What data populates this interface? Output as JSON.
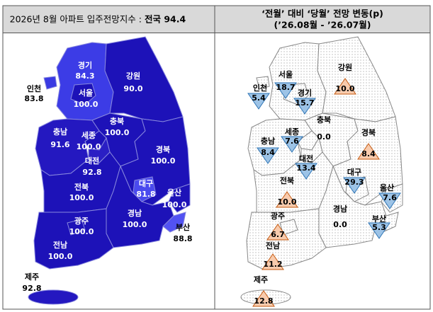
{
  "left": {
    "title": "2026년 8월 아파트 입주전망지수 :",
    "national": "전국 94.4",
    "regions": [
      {
        "name": "경기",
        "value": "84.3"
      },
      {
        "name": "서울",
        "value": "100.0"
      },
      {
        "name": "인천",
        "value": "83.8"
      },
      {
        "name": "강원",
        "value": "90.0"
      },
      {
        "name": "충북",
        "value": "100.0"
      },
      {
        "name": "충남",
        "value": "91.6"
      },
      {
        "name": "세종",
        "value": "100.0"
      },
      {
        "name": "대전",
        "value": "92.8"
      },
      {
        "name": "경북",
        "value": "100.0"
      },
      {
        "name": "대구",
        "value": "81.8"
      },
      {
        "name": "전북",
        "value": "100.0"
      },
      {
        "name": "울산",
        "value": "100.0"
      },
      {
        "name": "경남",
        "value": "100.0"
      },
      {
        "name": "부산",
        "value": "88.8"
      },
      {
        "name": "광주",
        "value": "100.0"
      },
      {
        "name": "전남",
        "value": "100.0"
      },
      {
        "name": "제주",
        "value": "92.8"
      }
    ]
  },
  "right": {
    "title": "‘전월’ 대비 ‘당월’ 전망 변동(p)",
    "subtitle": "(’26.08월 - ’26.07월)",
    "regions": [
      {
        "name": "경기",
        "value": "15.7",
        "trend": "down"
      },
      {
        "name": "서울",
        "value": "18.7",
        "trend": "down"
      },
      {
        "name": "인천",
        "value": "5.4",
        "trend": "down"
      },
      {
        "name": "강원",
        "value": "10.0",
        "trend": "up"
      },
      {
        "name": "충북",
        "value": "0.0",
        "trend": "none"
      },
      {
        "name": "충남",
        "value": "8.4",
        "trend": "down"
      },
      {
        "name": "세종",
        "value": "7.6",
        "trend": "down"
      },
      {
        "name": "대전",
        "value": "13.4",
        "trend": "down"
      },
      {
        "name": "경북",
        "value": "8.4",
        "trend": "up"
      },
      {
        "name": "대구",
        "value": "29.3",
        "trend": "down"
      },
      {
        "name": "전북",
        "value": "10.0",
        "trend": "up"
      },
      {
        "name": "울산",
        "value": "7.6",
        "trend": "down"
      },
      {
        "name": "경남",
        "value": "0.0",
        "trend": "none"
      },
      {
        "name": "부산",
        "value": "5.3",
        "trend": "down"
      },
      {
        "name": "광주",
        "value": "6.7",
        "trend": "up"
      },
      {
        "name": "전남",
        "value": "11.2",
        "trend": "up"
      },
      {
        "name": "제주",
        "value": "12.8",
        "trend": "up"
      }
    ]
  }
}
